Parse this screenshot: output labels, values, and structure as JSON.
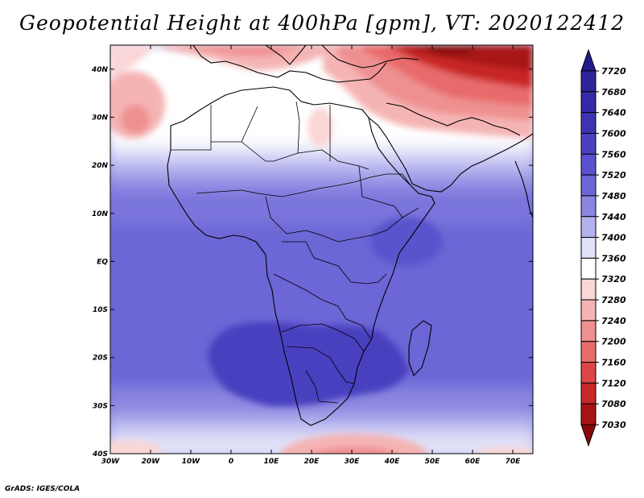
{
  "title": "Geopotential Height at 400hPa [gpm], VT: 2020122412",
  "credit": "GrADS: IGES/COLA",
  "map": {
    "lon_range": [
      -30,
      75
    ],
    "lat_range": [
      -40,
      45
    ],
    "x_ticks": [
      {
        "lon": -30,
        "label": "30W"
      },
      {
        "lon": -20,
        "label": "20W"
      },
      {
        "lon": -10,
        "label": "10W"
      },
      {
        "lon": 0,
        "label": "0"
      },
      {
        "lon": 10,
        "label": "10E"
      },
      {
        "lon": 20,
        "label": "20E"
      },
      {
        "lon": 30,
        "label": "30E"
      },
      {
        "lon": 40,
        "label": "40E"
      },
      {
        "lon": 50,
        "label": "50E"
      },
      {
        "lon": 60,
        "label": "60E"
      },
      {
        "lon": 70,
        "label": "70E"
      }
    ],
    "y_ticks": [
      {
        "lat": 40,
        "label": "40N"
      },
      {
        "lat": 30,
        "label": "30N"
      },
      {
        "lat": 20,
        "label": "20N"
      },
      {
        "lat": 10,
        "label": "10N"
      },
      {
        "lat": 0,
        "label": "EQ"
      },
      {
        "lat": -10,
        "label": "10S"
      },
      {
        "lat": -20,
        "label": "20S"
      },
      {
        "lat": -30,
        "label": "30S"
      },
      {
        "lat": -40,
        "label": "40S"
      }
    ]
  },
  "colorbar": {
    "levels": [
      "7720",
      "7680",
      "7640",
      "7600",
      "7560",
      "7520",
      "7480",
      "7440",
      "7400",
      "7360",
      "7320",
      "7280",
      "7240",
      "7200",
      "7160",
      "7120",
      "7080",
      "7030"
    ],
    "colors": [
      "#241a8a",
      "#2e2498",
      "#3529a6",
      "#3d33b3",
      "#4a40c0",
      "#5a52cc",
      "#6c66d6",
      "#8a86e0",
      "#b4b2ee",
      "#e0e0f8",
      "#ffffff",
      "#fad6d6",
      "#f5b4b4",
      "#ef9090",
      "#e86a6a",
      "#dc4646",
      "#c82828",
      "#a81414",
      "#880a0a"
    ]
  }
}
